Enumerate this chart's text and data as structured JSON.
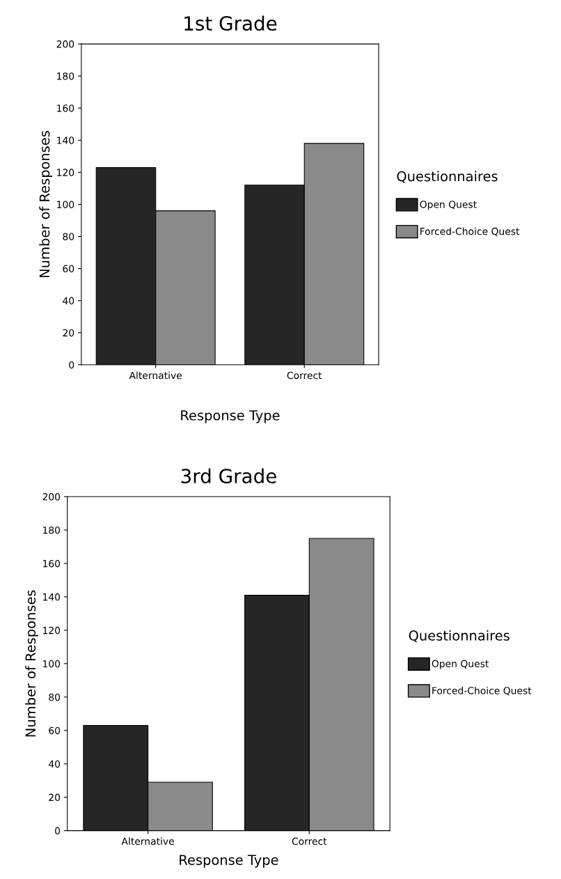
{
  "chart_data": [
    {
      "type": "bar",
      "title": "1st Grade",
      "xlabel": "Response Type",
      "ylabel": "Number of Responses",
      "legend_title": "Questionnaires",
      "legend": "right",
      "grid": false,
      "categories": [
        "Alternative",
        "Correct"
      ],
      "series": [
        {
          "name": "Open Quest",
          "color": "#262626",
          "values": [
            123,
            112
          ]
        },
        {
          "name": "Forced-Choice Quest",
          "color": "#8a8a8a",
          "values": [
            96,
            138
          ]
        }
      ],
      "ylim": [
        0,
        200
      ],
      "yticks": [
        0,
        20,
        40,
        60,
        80,
        100,
        120,
        140,
        160,
        180,
        200
      ]
    },
    {
      "type": "bar",
      "title": "3rd Grade",
      "xlabel": "Response Type",
      "ylabel": "Number of Responses",
      "legend_title": "Questionnaires",
      "legend": "right",
      "grid": false,
      "categories": [
        "Alternative",
        "Correct"
      ],
      "series": [
        {
          "name": "Open Quest",
          "color": "#262626",
          "values": [
            63,
            141
          ]
        },
        {
          "name": "Forced-Choice Quest",
          "color": "#8a8a8a",
          "values": [
            29,
            175
          ]
        }
      ],
      "ylim": [
        0,
        200
      ],
      "yticks": [
        0,
        20,
        40,
        60,
        80,
        100,
        120,
        140,
        160,
        180,
        200
      ]
    }
  ]
}
